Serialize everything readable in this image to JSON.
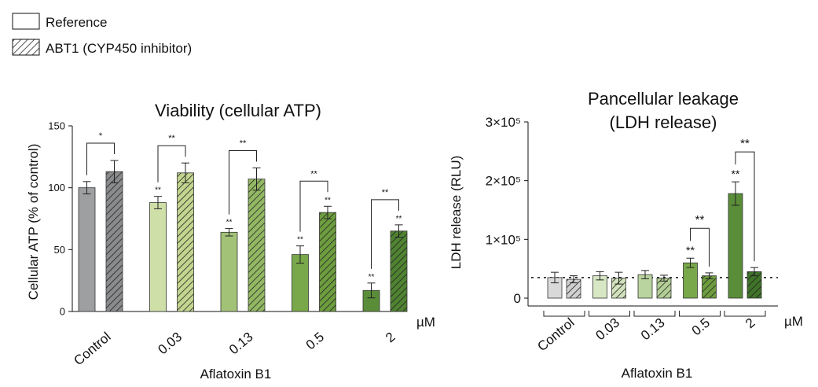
{
  "legend": {
    "items": [
      {
        "label": "Reference",
        "pattern": "none"
      },
      {
        "label": "ABT1 (CYP450 inhibitor)",
        "pattern": "hatched"
      }
    ]
  },
  "chart_data": [
    {
      "type": "bar",
      "title": "Viability (cellular ATP)",
      "xlabel": "Aflatoxin B1",
      "ylabel": "Cellular ATP (% of control)",
      "unit_label": "µM",
      "ylim": [
        0,
        150
      ],
      "yticks": [
        0,
        50,
        100,
        150
      ],
      "categories": [
        "Control",
        "0.03",
        "0.13",
        "0.5",
        "2"
      ],
      "series": [
        {
          "name": "Reference",
          "values": [
            100,
            88,
            64,
            46,
            17
          ],
          "errors": [
            5,
            5,
            3,
            7,
            6
          ],
          "labels": [
            "",
            "**",
            "**",
            "**",
            "**"
          ]
        },
        {
          "name": "ABT1 (CYP450 inhibitor)",
          "values": [
            113,
            112,
            107,
            80,
            65
          ],
          "errors": [
            9,
            8,
            9,
            5,
            5
          ],
          "labels": [
            "",
            "",
            "",
            "**",
            "**"
          ]
        }
      ],
      "brackets": [
        "*",
        "**",
        "**",
        "**",
        "**"
      ],
      "colors": {
        "reference": [
          "#9e9fa1",
          "#cfdfa8",
          "#a2c278",
          "#78a84a",
          "#5a8d38"
        ],
        "abt1": [
          "#8a8b8d",
          "#c3d58f",
          "#93b863",
          "#6d9d3f",
          "#4f8331"
        ]
      }
    },
    {
      "type": "bar",
      "title": "Pancellular leakage",
      "subtitle": "(LDH release)",
      "xlabel": "Aflatoxin B1",
      "ylabel": "LDH release (RLU)",
      "unit_label": "µM",
      "ylim": [
        0,
        300000
      ],
      "ytick_labels": [
        "0",
        "1×10⁵",
        "2×10⁵",
        "3×10⁵"
      ],
      "yticks": [
        0,
        100000,
        200000,
        300000
      ],
      "reference_line": 35000,
      "categories": [
        "Control",
        "0.03",
        "0.13",
        "0.5",
        "2"
      ],
      "series": [
        {
          "name": "Reference",
          "values": [
            35000,
            38000,
            40000,
            60000,
            178000
          ],
          "errors": [
            9000,
            7000,
            7000,
            8000,
            20000
          ],
          "labels": [
            "",
            "",
            "",
            "**",
            "**"
          ]
        },
        {
          "name": "ABT1 (CYP450 inhibitor)",
          "values": [
            32000,
            34000,
            34000,
            38000,
            45000
          ],
          "errors": [
            6000,
            10000,
            5000,
            5000,
            7000
          ],
          "labels": [
            "",
            "",
            "",
            "",
            ""
          ]
        }
      ],
      "brackets": [
        "",
        "",
        "",
        "**",
        "**"
      ],
      "colors": {
        "reference": [
          "#d9d9d9",
          "#d7e6c3",
          "#b9d49e",
          "#78a84a",
          "#5a8d38"
        ],
        "abt1": [
          "#d0d0d0",
          "#d2e2bc",
          "#b3cf96",
          "#6d9d3f",
          "#3f7328"
        ]
      }
    }
  ]
}
